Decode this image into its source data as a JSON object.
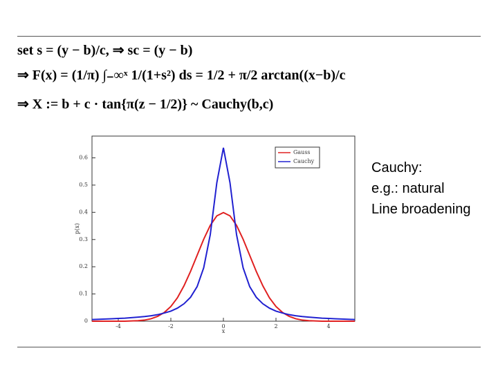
{
  "equations": [
    "set s = (y − b)/c,   ⇒ sc = (y − b)",
    "⇒ F(x) = (1/π) ∫₋∞ˣ 1/(1+s²) ds = 1/2 + π/2 arctan((x−b)/c",
    "⇒ X := b + c · tan{π(z − 1/2)} ~ Cauchy(b,c)"
  ],
  "note": [
    "Cauchy:",
    "e.g.: natural",
    "Line broadening"
  ],
  "chart_data": {
    "type": "line",
    "xlabel": "x",
    "ylabel": "p(x)",
    "x": [
      -5,
      -4.75,
      -4.5,
      -4.25,
      -4,
      -3.75,
      -3.5,
      -3.25,
      -3,
      -2.75,
      -2.5,
      -2.25,
      -2,
      -1.75,
      -1.5,
      -1.25,
      -1,
      -0.75,
      -0.5,
      -0.25,
      0,
      0.25,
      0.5,
      0.75,
      1,
      1.25,
      1.5,
      1.75,
      2,
      2.25,
      2.5,
      2.75,
      3,
      3.25,
      3.5,
      3.75,
      4,
      4.25,
      4.5,
      4.75,
      5
    ],
    "series": [
      {
        "name": "Gauss",
        "color": "#e02020",
        "values": [
          0,
          0,
          0,
          0,
          0,
          0,
          0.001,
          0.002,
          0.004,
          0.009,
          0.018,
          0.032,
          0.054,
          0.086,
          0.13,
          0.183,
          0.242,
          0.301,
          0.352,
          0.387,
          0.399,
          0.387,
          0.352,
          0.301,
          0.242,
          0.183,
          0.13,
          0.086,
          0.054,
          0.032,
          0.018,
          0.009,
          0.004,
          0.002,
          0.001,
          0,
          0,
          0,
          0,
          0,
          0
        ]
      },
      {
        "name": "Cauchy",
        "color": "#2020d0",
        "values": [
          0.006,
          0.007,
          0.008,
          0.009,
          0.01,
          0.011,
          0.013,
          0.015,
          0.017,
          0.02,
          0.024,
          0.03,
          0.037,
          0.048,
          0.064,
          0.088,
          0.127,
          0.196,
          0.318,
          0.509,
          0.637,
          0.509,
          0.318,
          0.196,
          0.127,
          0.088,
          0.064,
          0.048,
          0.037,
          0.03,
          0.024,
          0.02,
          0.017,
          0.015,
          0.013,
          0.011,
          0.01,
          0.009,
          0.008,
          0.007,
          0.006
        ]
      }
    ],
    "xlim": [
      -5,
      5
    ],
    "xticks": [
      -4,
      -2,
      0,
      2,
      4
    ],
    "ylim": [
      0,
      0.68
    ],
    "yticks": [
      0,
      0.1,
      0.2,
      0.3,
      0.4,
      0.5,
      0.6
    ],
    "legend": "upper-right"
  }
}
